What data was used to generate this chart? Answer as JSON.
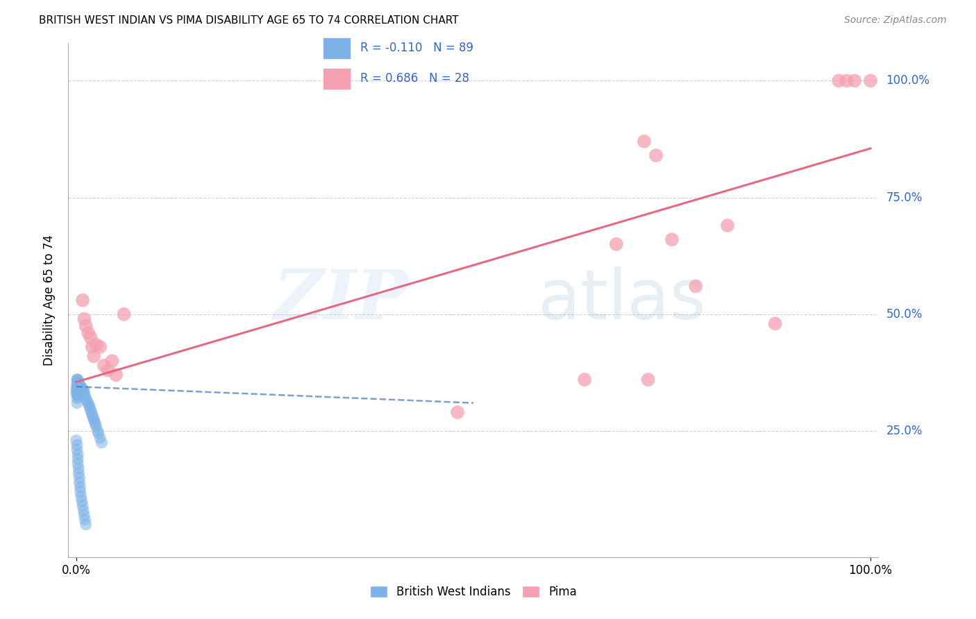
{
  "title": "BRITISH WEST INDIAN VS PIMA DISABILITY AGE 65 TO 74 CORRELATION CHART",
  "source": "Source: ZipAtlas.com",
  "ylabel": "Disability Age 65 to 74",
  "legend_label1": "British West Indians",
  "legend_label2": "Pima",
  "R1": -0.11,
  "N1": 89,
  "R2": 0.686,
  "N2": 28,
  "blue_color": "#7EB3E8",
  "pink_color": "#F4A0B0",
  "blue_line_color": "#4477BB",
  "pink_line_color": "#E8607A",
  "watermark_zip": "ZIP",
  "watermark_atlas": "atlas",
  "bwi_x": [
    0.0,
    0.0,
    0.001,
    0.001,
    0.001,
    0.001,
    0.001,
    0.001,
    0.001,
    0.001,
    0.002,
    0.002,
    0.002,
    0.002,
    0.002,
    0.002,
    0.002,
    0.002,
    0.002,
    0.002,
    0.003,
    0.003,
    0.003,
    0.003,
    0.003,
    0.003,
    0.003,
    0.003,
    0.003,
    0.003,
    0.004,
    0.004,
    0.004,
    0.004,
    0.004,
    0.004,
    0.004,
    0.005,
    0.005,
    0.005,
    0.005,
    0.006,
    0.006,
    0.006,
    0.007,
    0.007,
    0.007,
    0.008,
    0.008,
    0.009,
    0.01,
    0.01,
    0.011,
    0.012,
    0.013,
    0.015,
    0.016,
    0.017,
    0.018,
    0.019,
    0.02,
    0.021,
    0.022,
    0.023,
    0.024,
    0.025,
    0.027,
    0.028,
    0.03,
    0.032,
    0.0,
    0.001,
    0.001,
    0.002,
    0.002,
    0.002,
    0.003,
    0.003,
    0.004,
    0.004,
    0.005,
    0.005,
    0.006,
    0.007,
    0.008,
    0.009,
    0.01,
    0.011,
    0.012
  ],
  "bwi_y": [
    0.34,
    0.33,
    0.35,
    0.36,
    0.32,
    0.31,
    0.34,
    0.33,
    0.35,
    0.36,
    0.34,
    0.335,
    0.345,
    0.325,
    0.355,
    0.36,
    0.33,
    0.345,
    0.34,
    0.335,
    0.34,
    0.33,
    0.35,
    0.345,
    0.335,
    0.34,
    0.325,
    0.355,
    0.345,
    0.335,
    0.34,
    0.335,
    0.345,
    0.33,
    0.35,
    0.34,
    0.335,
    0.34,
    0.335,
    0.345,
    0.33,
    0.34,
    0.335,
    0.345,
    0.33,
    0.34,
    0.335,
    0.33,
    0.34,
    0.335,
    0.33,
    0.335,
    0.325,
    0.32,
    0.315,
    0.31,
    0.305,
    0.3,
    0.295,
    0.29,
    0.285,
    0.28,
    0.275,
    0.27,
    0.265,
    0.26,
    0.25,
    0.245,
    0.235,
    0.225,
    0.23,
    0.22,
    0.21,
    0.2,
    0.19,
    0.18,
    0.17,
    0.16,
    0.15,
    0.14,
    0.13,
    0.12,
    0.11,
    0.1,
    0.09,
    0.08,
    0.07,
    0.06,
    0.05
  ],
  "pima_x": [
    0.008,
    0.01,
    0.012,
    0.015,
    0.018,
    0.02,
    0.022,
    0.025,
    0.03,
    0.035,
    0.04,
    0.045,
    0.05,
    0.06,
    0.48,
    0.64,
    0.68,
    0.72,
    0.75,
    0.78,
    0.82,
    0.88,
    0.715,
    0.73,
    0.96,
    0.97,
    0.98,
    1.0
  ],
  "pima_y": [
    0.53,
    0.49,
    0.475,
    0.46,
    0.45,
    0.43,
    0.41,
    0.435,
    0.43,
    0.39,
    0.38,
    0.4,
    0.37,
    0.5,
    0.29,
    0.36,
    0.65,
    0.36,
    0.66,
    0.56,
    0.69,
    0.48,
    0.87,
    0.84,
    1.0,
    1.0,
    1.0,
    1.0
  ],
  "pima_line_x0": 0.0,
  "pima_line_y0": 0.355,
  "pima_line_x1": 1.0,
  "pima_line_y1": 0.855,
  "bwi_line_x0": 0.0,
  "bwi_line_y0": 0.345,
  "bwi_line_x1": 0.5,
  "bwi_line_y1": 0.31,
  "xlim_min": -0.01,
  "xlim_max": 1.01,
  "ylim_min": -0.02,
  "ylim_max": 1.08,
  "yticks": [
    0.25,
    0.5,
    0.75,
    1.0
  ],
  "ytick_labels": [
    "25.0%",
    "50.0%",
    "75.0%",
    "100.0%"
  ],
  "xticks": [
    0.0,
    1.0
  ],
  "xtick_labels": [
    "0.0%",
    "100.0%"
  ]
}
